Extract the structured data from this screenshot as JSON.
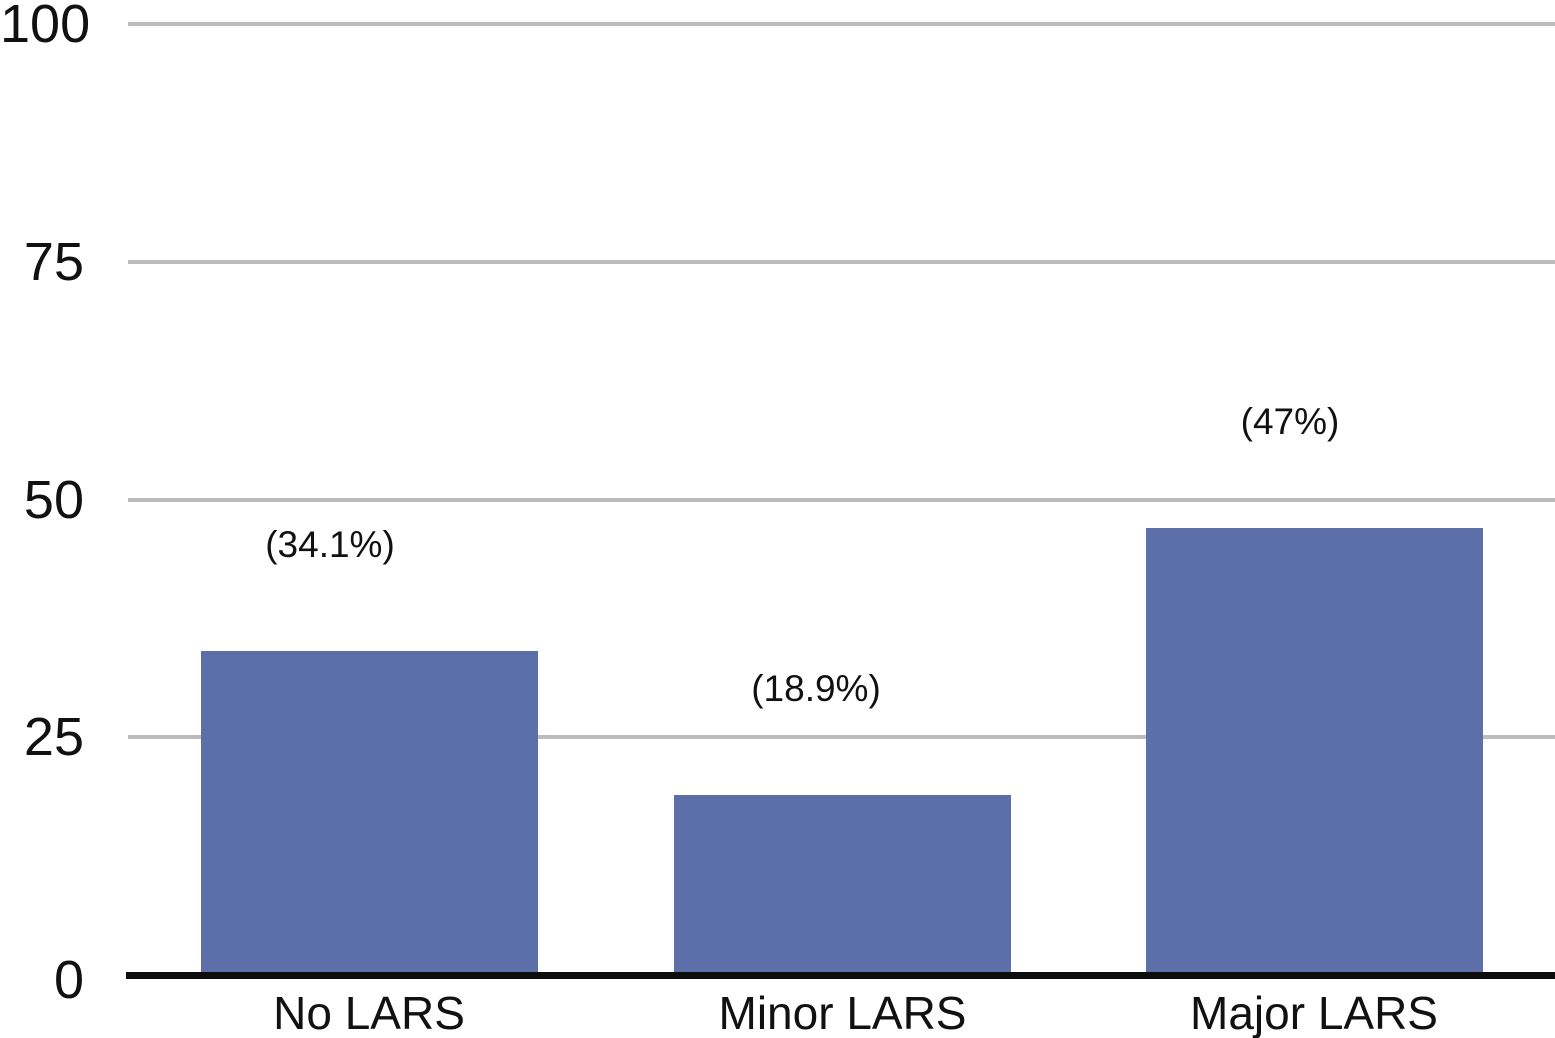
{
  "chart_data": {
    "type": "bar",
    "title": "",
    "xlabel": "",
    "ylabel": "",
    "categories": [
      "No LARS",
      "Minor LARS",
      "Major LARS"
    ],
    "values": [
      34.1,
      18.9,
      47
    ],
    "bar_value_labels": [
      "(34.1%)",
      "(18.9%)",
      "(47%)"
    ],
    "y_ticks": [
      0,
      25,
      50,
      75,
      100
    ],
    "y_tick_labels": [
      "0",
      "25",
      "50",
      "75",
      "100"
    ],
    "ylim": [
      0,
      100
    ],
    "grid": true,
    "legend_position": "none",
    "colors": {
      "bar_fill": "#5c6fa9",
      "gridline": "#bcbcbc",
      "axis_line": "#0d0d0d",
      "text": "#111111",
      "background": "#ffffff"
    }
  }
}
